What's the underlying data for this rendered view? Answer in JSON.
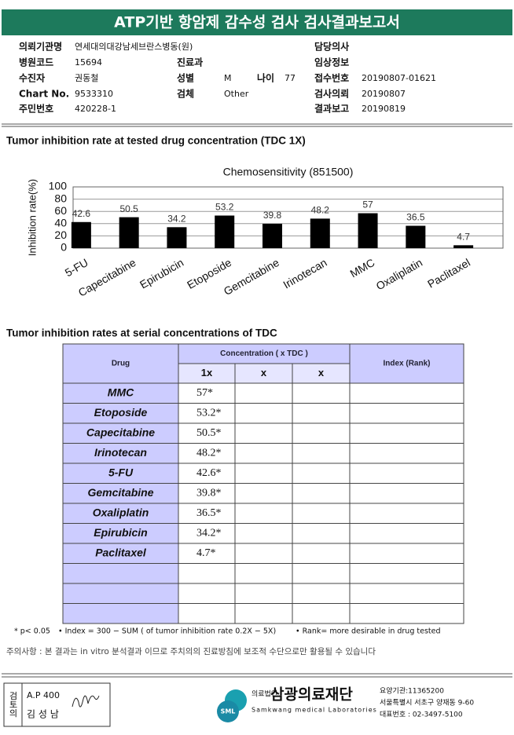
{
  "header": {
    "title": "ATP기반 항암제 감수성 검사 검사결과보고서"
  },
  "info": [
    {
      "label": "의뢰기관명",
      "value": "연세대의대강남세브란스병동(원)"
    },
    {
      "label": "담당의사"
    },
    {
      "label": "병원코드",
      "value": "15694"
    },
    {
      "label": "진료과"
    },
    {
      "label": "임상정보"
    },
    {
      "label": "수진자",
      "value": "권동철"
    },
    {
      "label": "성별",
      "value": "M"
    },
    {
      "label": "나이",
      "value": "77"
    },
    {
      "label": "접수번호",
      "value": "20190807-01621"
    },
    {
      "label": "Chart No.",
      "value": "9533310"
    },
    {
      "label": "검체",
      "value": "Other"
    },
    {
      "label": "검사의뢰",
      "value": "20190807"
    },
    {
      "label": "주민번호",
      "value": "420228-1"
    },
    {
      "label": "결과보고",
      "value": "20190819"
    }
  ],
  "section1_title": "Tumor inhibition rate at tested drug concentration (TDC 1X)",
  "chart_data": {
    "type": "bar",
    "title": "Chemosensitivity (851500)",
    "y_label": "Inhibition rate(%)",
    "categories": [
      "5-FU",
      "Capecitabine",
      "Epirubicin",
      "Etoposide",
      "Gemcitabine",
      "Irinotecan",
      "MMC",
      "Oxaliplatin",
      "Paclitaxel"
    ],
    "values": [
      42.6,
      50.5,
      34.2,
      53.2,
      39.8,
      48.2,
      57,
      36.5,
      4.7
    ],
    "color": "#000000",
    "ylim": [
      0,
      100
    ],
    "yticks": [
      0,
      20,
      40,
      60,
      80,
      100
    ],
    "grid": true
  },
  "section2_title": "Tumor inhibition rates at serial concentrations of TDC",
  "table": {
    "headers": {
      "drug": "Drug",
      "concentration": "Concentration ( x TDC )",
      "levels": [
        "1x",
        "x",
        "x"
      ],
      "index": "Index (Rank)"
    },
    "rows": [
      [
        "MMC",
        "57*"
      ],
      [
        "Etoposide",
        "53.2*"
      ],
      [
        "Capecitabine",
        "50.5*"
      ],
      [
        "Irinotecan",
        "48.2*"
      ],
      [
        "5-FU",
        "42.6*"
      ],
      [
        "Gemcitabine",
        "39.8*"
      ],
      [
        "Oxaliplatin",
        "36.5*"
      ],
      [
        "Epirubicin",
        "34.2*"
      ],
      [
        "Paclitaxel",
        "4.7*"
      ]
    ]
  },
  "footnotes": [
    "* p< 0.05",
    "• Index = 300 − SUM ( of tumor inhibition rate 0.2X − 5X)",
    "• Rank= more desirable in drug tested"
  ],
  "notice": "주의사항 : 본 결과는 in vitro 분석결과 이므로 주치의의 진료방침에 보조적 수단으로만 활용될 수 있습니다",
  "footer": {
    "reviewer_label": "검토의",
    "reviewer_id": "A.P 400",
    "reviewer_name": "김 성 남",
    "logo_mark": "SML",
    "org_type": "의료법인",
    "org_name": "삼광의료재단",
    "org_name_en": "Samkwang medical Laboratories",
    "contact": [
      "요양기관:11365200",
      "서울특별시 서초구 양재동 9-60",
      "대표번호 : 02-3497-5100"
    ]
  }
}
